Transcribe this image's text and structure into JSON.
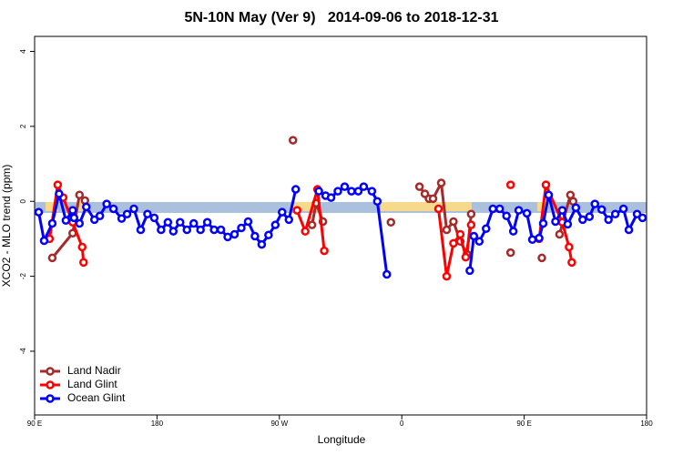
{
  "chart_data": {
    "type": "line",
    "title": "5N-10N May (Ver 9)   2014-09-06 to 2018-12-31",
    "xlabel": "Longitude",
    "ylabel": "XCO2 - MLO trend (ppm)",
    "xlim": [
      90,
      540
    ],
    "ylim": [
      -5.7,
      4.4
    ],
    "xticks": [
      {
        "value": 90,
        "label": "90 E"
      },
      180,
      {
        "value": 270,
        "label": "90 W"
      },
      {
        "value": 360,
        "label": "0"
      },
      {
        "value": 450,
        "label": "90 E"
      },
      180
    ],
    "yticks": [
      -4,
      -2,
      0,
      2,
      4
    ],
    "legend": "bottom-left",
    "series": [
      {
        "name": "Land Nadir",
        "color": "#a52a2a",
        "x": [
          103,
          118,
          123,
          127,
          200,
          280,
          285,
          294,
          297,
          302,
          330,
          352,
          360,
          373,
          377,
          380,
          383,
          389,
          393,
          398,
          403,
          408,
          411,
          430,
          440,
          455,
          463,
          470,
          476,
          484,
          486
        ],
        "values": [
          -1.51,
          -0.85,
          0.17,
          0.02,
          null,
          1.63,
          null,
          -0.63,
          -0.05,
          -0.54,
          null,
          -0.56,
          null,
          0.39,
          0.2,
          0.07,
          0.07,
          0.49,
          -0.76,
          -0.54,
          -1.07,
          -1.41,
          -0.34,
          null,
          -1.37,
          null,
          -1.51,
          null,
          -0.88,
          0.17,
          0.0
        ]
      },
      {
        "name": "Land Glint",
        "color": "#ff0000",
        "x": [
          101,
          107,
          111,
          118,
          125,
          126,
          200,
          283,
          289,
          298,
          303,
          380,
          387,
          393,
          398,
          403,
          407,
          411,
          420,
          440,
          450,
          461,
          466,
          478,
          483,
          485
        ],
        "values": [
          -1.0,
          0.44,
          0.1,
          -0.56,
          -1.22,
          -1.63,
          null,
          -0.24,
          -0.8,
          0.32,
          -1.32,
          null,
          -0.2,
          -2.0,
          -1.12,
          -0.88,
          -1.49,
          -0.63,
          null,
          0.44,
          null,
          -1.0,
          0.44,
          -0.56,
          -1.22,
          -1.63
        ]
      },
      {
        "name": "Ocean Glint",
        "color": "#0000ff",
        "x": [
          93,
          97,
          103,
          108,
          113,
          118,
          119,
          123,
          128,
          134,
          138,
          143,
          148,
          154,
          158,
          163,
          168,
          173,
          178,
          183,
          188,
          192,
          197,
          202,
          207,
          212,
          217,
          222,
          227,
          232,
          237,
          242,
          247,
          252,
          257,
          262,
          267,
          272,
          277,
          282,
          290,
          299,
          304,
          308,
          313,
          318,
          323,
          328,
          332,
          338,
          342,
          349,
          380,
          410,
          413,
          417,
          422,
          427,
          432,
          437,
          442,
          446,
          452,
          456,
          461,
          464,
          468,
          473,
          478,
          482,
          488,
          493,
          498,
          502,
          507,
          512,
          517,
          523,
          527,
          533,
          537
        ],
        "values": [
          -0.29,
          -1.05,
          -0.59,
          0.2,
          -0.51,
          -0.24,
          -0.44,
          -0.59,
          -0.15,
          -0.49,
          -0.39,
          -0.07,
          -0.2,
          -0.46,
          -0.34,
          -0.2,
          -0.76,
          -0.34,
          -0.44,
          -0.76,
          -0.56,
          -0.8,
          -0.56,
          -0.76,
          -0.59,
          -0.76,
          -0.56,
          -0.76,
          -0.76,
          -0.95,
          -0.88,
          -0.71,
          -0.54,
          -0.93,
          -1.15,
          -0.9,
          -0.63,
          -0.29,
          -0.49,
          0.32,
          null,
          0.27,
          0.15,
          0.1,
          0.27,
          0.39,
          0.27,
          0.27,
          0.39,
          0.27,
          0.0,
          -1.95,
          null,
          -1.85,
          -0.93,
          -1.07,
          -0.73,
          -0.2,
          -0.2,
          -0.39,
          -0.8,
          -0.24,
          -0.32,
          -1.02,
          -0.98,
          -0.59,
          0.17,
          -0.54,
          -0.24,
          -0.61,
          -0.17,
          -0.49,
          -0.41,
          -0.07,
          -0.22,
          -0.49,
          -0.34,
          -0.2,
          -0.76,
          -0.34,
          -0.44
        ]
      }
    ]
  }
}
